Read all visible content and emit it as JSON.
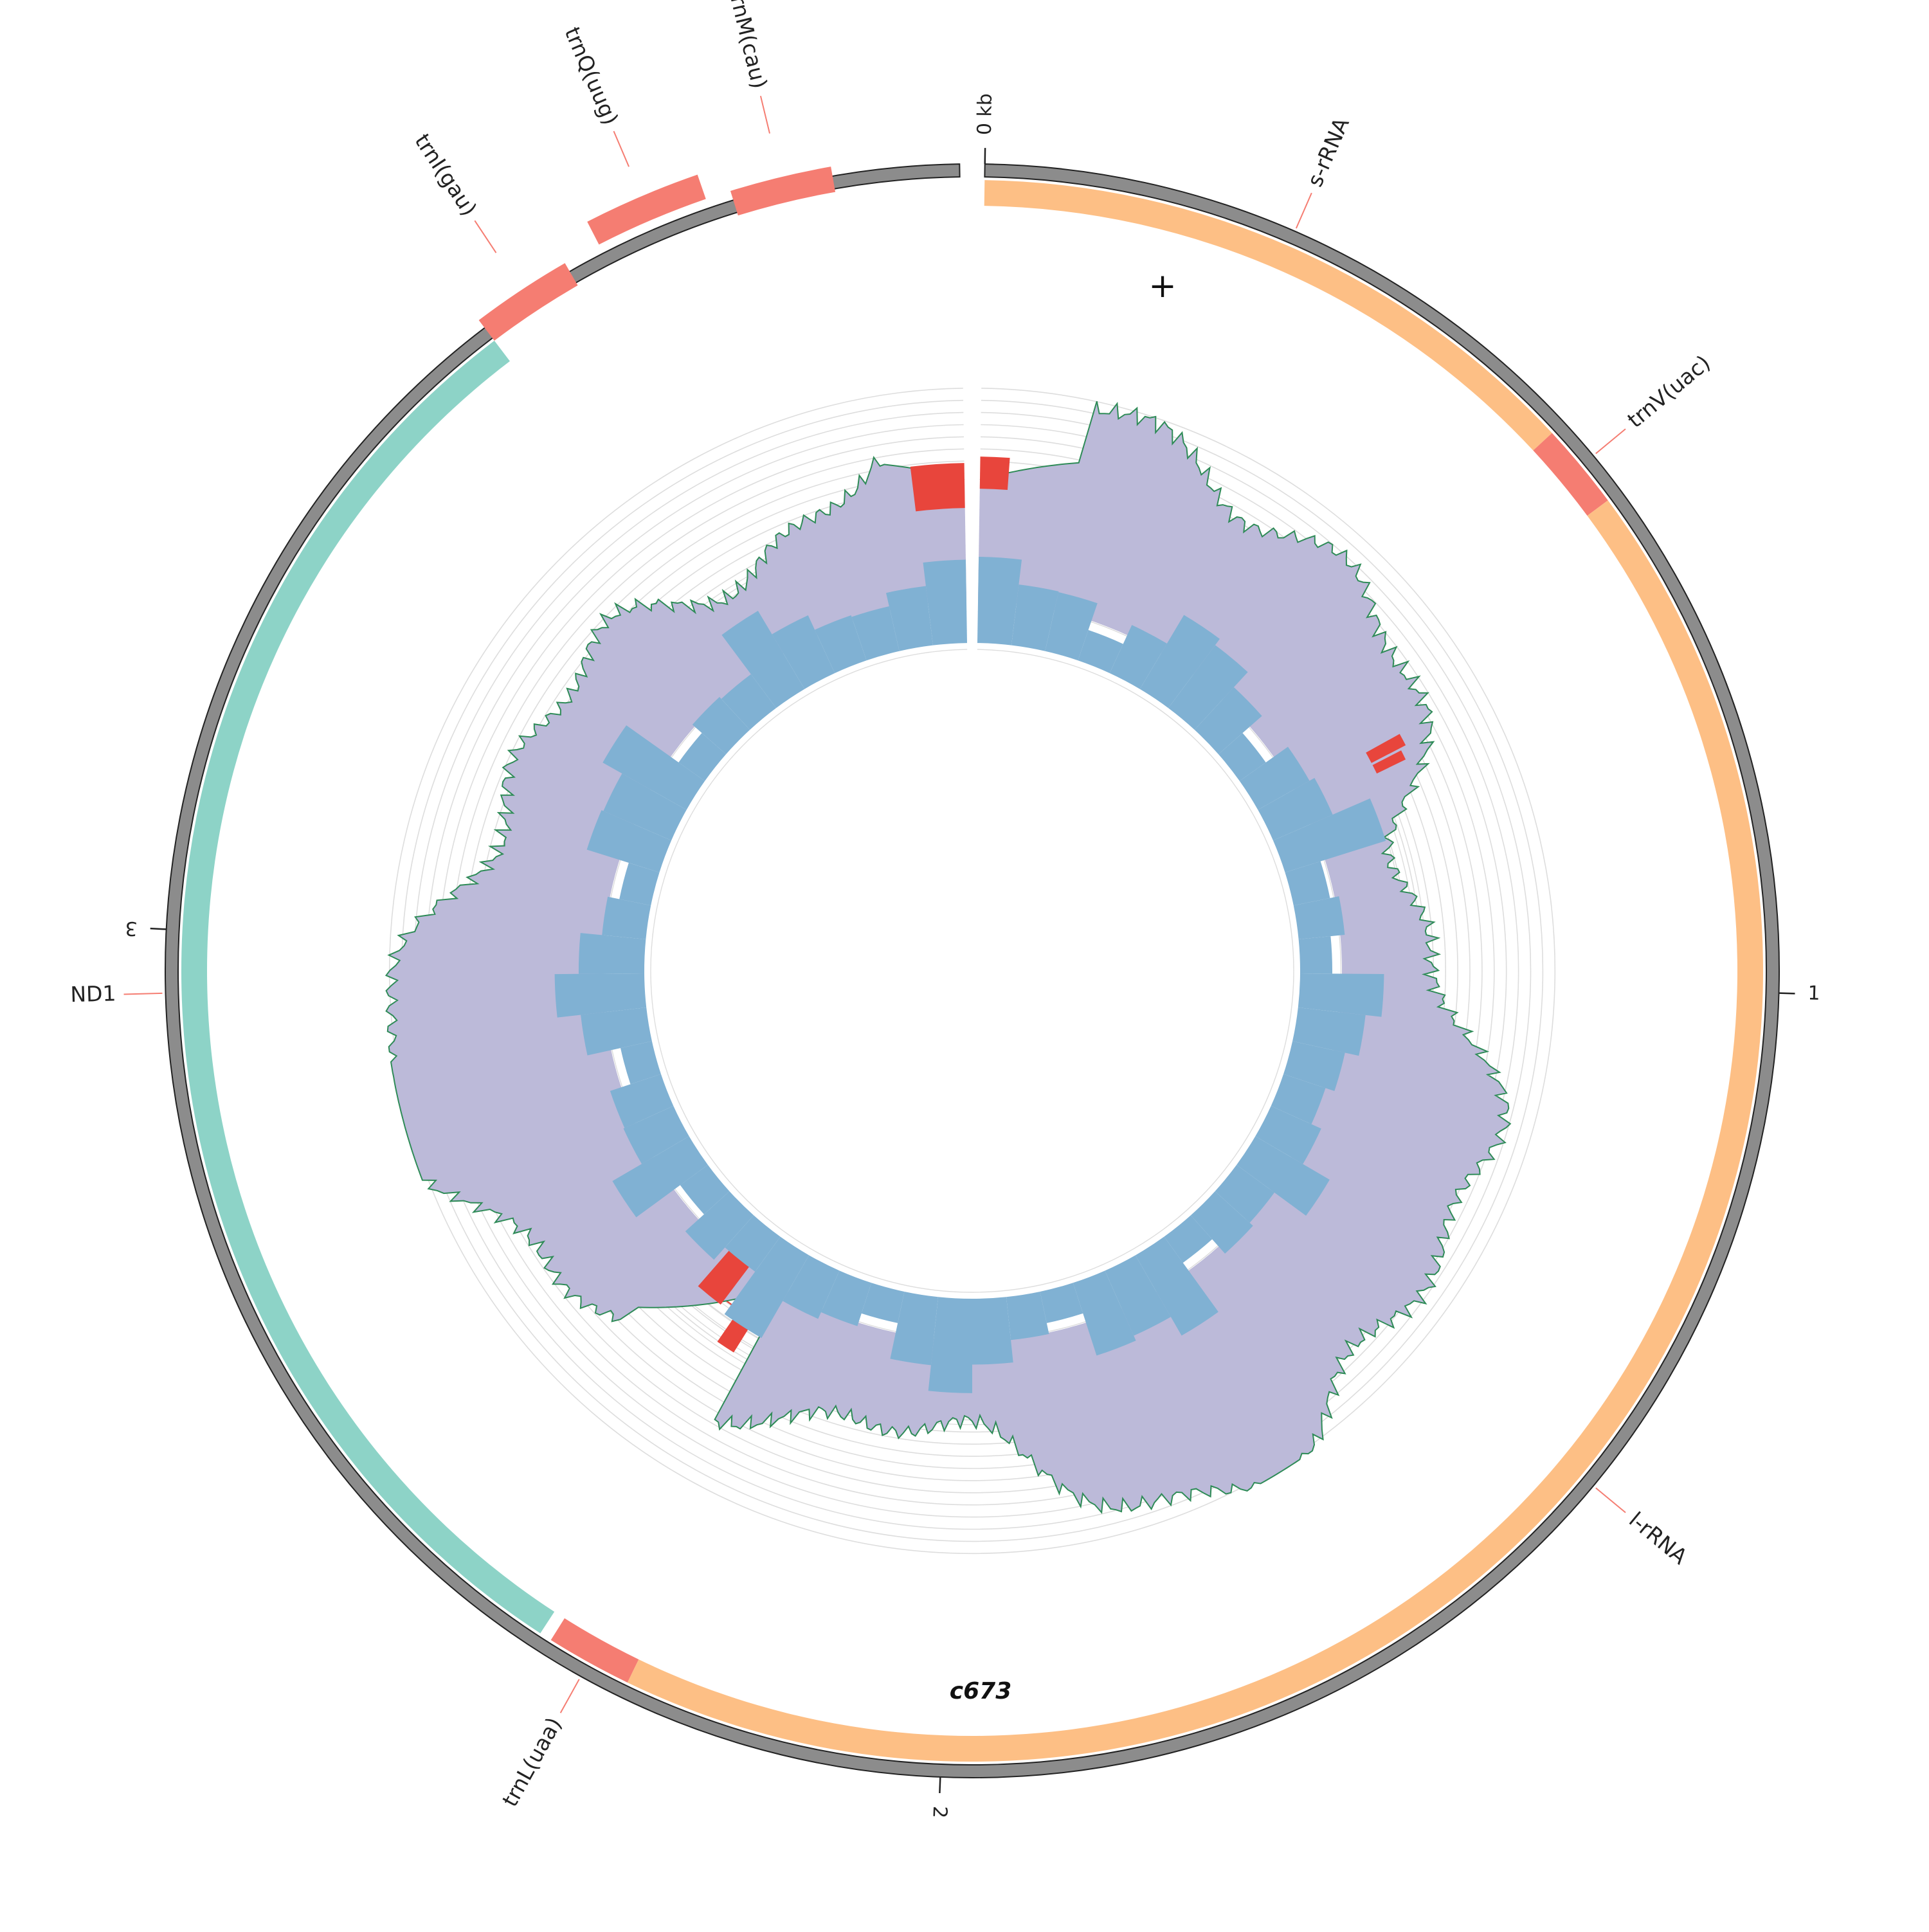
{
  "title": "c673",
  "strand_marker": "+",
  "genome_length_kb": 3.95,
  "ticks": [
    {
      "kb": 0,
      "label": "0 kb"
    },
    {
      "kb": 1,
      "label": "1"
    },
    {
      "kb": 2,
      "label": "2"
    },
    {
      "kb": 3,
      "label": "3"
    }
  ],
  "colors": {
    "rRNA": "#fdbf85",
    "tRNA": "#f57d72",
    "CDS": "#8dd3c7",
    "backbone": "#8c8c8c",
    "coverage_fill": "#bcbad9",
    "coverage_line": "#2e8b57",
    "low_coverage": "#e8453c",
    "gc_bars": "#80b1d3",
    "gc_mean_line": "#e8453c",
    "grid": "#dddddd",
    "leader_line": "#f57d72"
  },
  "features": [
    {
      "name": "s-rRNA",
      "type": "rRNA",
      "start_kb": 0.0,
      "end_kb": 0.51
    },
    {
      "name": "trnV(uac)",
      "type": "tRNA",
      "start_kb": 0.51,
      "end_kb": 0.58
    },
    {
      "name": "l-rRNA",
      "type": "rRNA",
      "start_kb": 0.58,
      "end_kb": 2.26
    },
    {
      "name": "trnL(uaa)",
      "type": "tRNA",
      "start_kb": 2.26,
      "end_kb": 2.33
    },
    {
      "name": "ND1",
      "type": "CDS",
      "start_kb": 2.34,
      "end_kb": 3.55
    },
    {
      "name": "trnI(gau)",
      "type": "tRNA",
      "start_kb": 3.55,
      "end_kb": 3.63
    },
    {
      "name": "trnQ(uug)",
      "type": "tRNA",
      "start_kb": 3.66,
      "end_kb": 3.75
    },
    {
      "name": "trnM(cau)",
      "type": "tRNA",
      "start_kb": 3.77,
      "end_kb": 3.85
    }
  ],
  "feature_labels": [
    {
      "text": "s-rRNA",
      "kb": 0.25
    },
    {
      "text": "trnV(uac)",
      "kb": 0.545
    },
    {
      "text": "l-rRNA",
      "kb": 1.42
    },
    {
      "text": "trnL(uaa)",
      "kb": 2.295
    },
    {
      "text": "ND1",
      "kb": 2.95
    },
    {
      "text": "trnI(gau)",
      "kb": 3.59
    },
    {
      "text": "trnQ(uug)",
      "kb": 3.705
    },
    {
      "text": "trnM(cau)",
      "kb": 3.81
    }
  ]
}
